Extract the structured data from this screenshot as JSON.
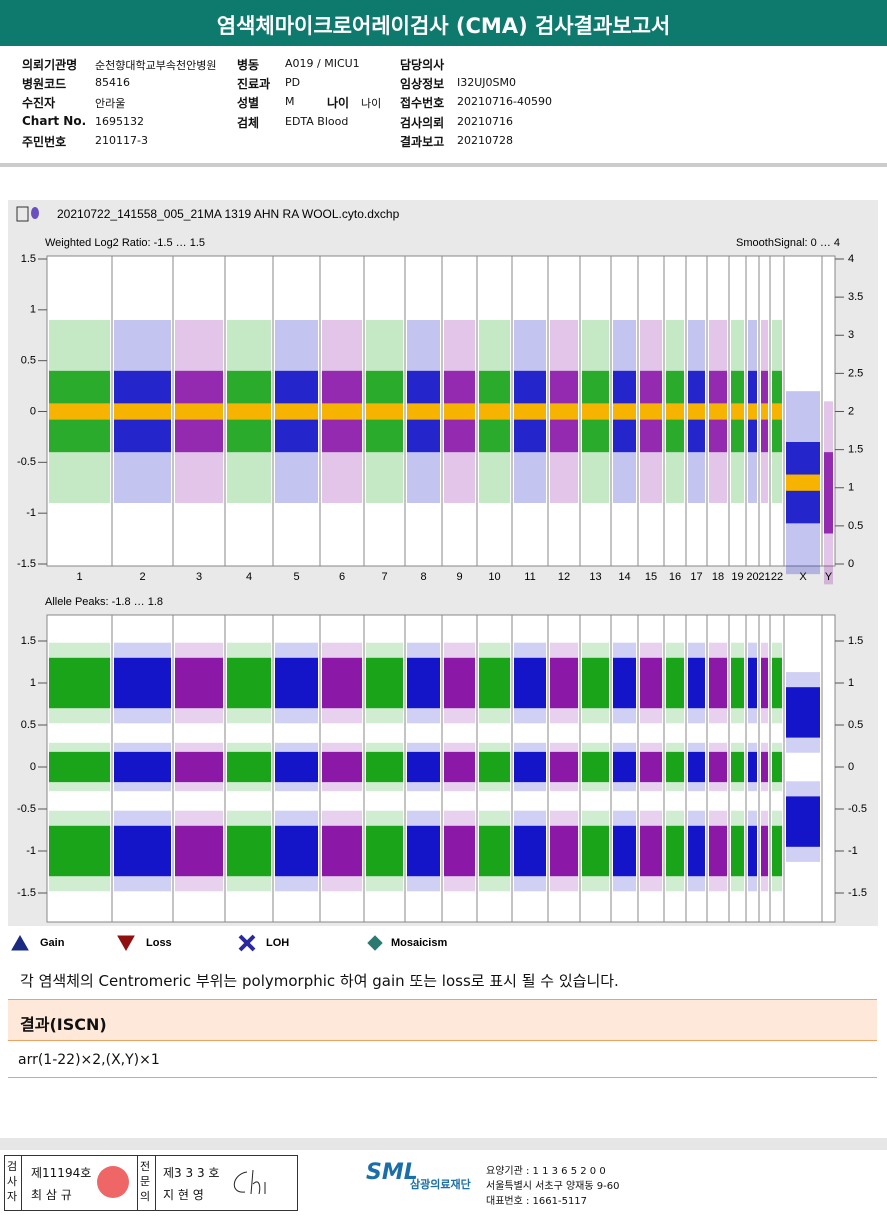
{
  "header": {
    "title": "염색체마이크로어레이검사 (CMA) 검사결과보고서"
  },
  "info": [
    [
      {
        "label": "의뢰기관명",
        "value": "순천향대학교부속천안병원"
      },
      {
        "label": "병동",
        "value": "A019 / MICU1"
      },
      {
        "label": "담당의사"
      }
    ],
    [
      {
        "label": "병원코드",
        "value": "85416"
      },
      {
        "label": "진료과",
        "value": "PD"
      },
      {
        "label": "임상정보",
        "value": "I32UJ0SM0"
      }
    ],
    [
      {
        "label": "수진자",
        "value": "안라울"
      },
      {
        "label": "성별",
        "value": "M"
      },
      {
        "label": "접수번호",
        "value": "20210716-40590"
      }
    ],
    [
      {
        "label": "Chart No.",
        "value": "1695132"
      },
      {
        "label": "검체",
        "value": "EDTA Blood"
      },
      {
        "label": "검사의뢰",
        "value": "20210716"
      }
    ],
    [
      {
        "label": "주민번호",
        "value": "210117-3"
      },
      {
        "label": "결과보고",
        "value": "20210728"
      }
    ]
  ],
  "age": {
    "label": "나이",
    "value": "나이"
  },
  "plot": {
    "file": "20210722_141558_005_21MA 1319 AHN RA WOOL.cyto.dxchp",
    "top": {
      "left_title": "Weighted Log2 Ratio: -1.5 … 1.5",
      "right_title": "SmoothSignal: 0 … 4",
      "left_ticks": [
        "1.5",
        "1",
        "0.5",
        "0",
        "-0.5",
        "-1",
        "-1.5"
      ],
      "right_ticks": [
        "4",
        "3.5",
        "3",
        "2.5",
        "2",
        "1.5",
        "1",
        "0.5",
        "0"
      ]
    },
    "chromosomes": [
      "1",
      "2",
      "3",
      "4",
      "5",
      "6",
      "7",
      "8",
      "9",
      "10",
      "11",
      "12",
      "13",
      "14",
      "15",
      "16",
      "17",
      "18",
      "19",
      "20",
      "21",
      "22",
      "X",
      "Y"
    ],
    "bottom": {
      "left_title": "Allele Peaks: -1.8 … 1.8",
      "left_ticks": [
        "1.5",
        "1",
        "0.5",
        "0",
        "-0.5",
        "-1",
        "-1.5"
      ],
      "right_ticks": [
        "1.5",
        "1",
        "0.5",
        "0",
        "-0.5",
        "-1",
        "-1.5"
      ]
    }
  },
  "legend": [
    "Gain",
    "Loss",
    "LOH",
    "Mosaicism"
  ],
  "note": "각 염색체의 Centromeric 부위는 polymorphic 하여 gain 또는 loss로 표시 될 수 있습니다.",
  "result": {
    "title": "결과(ISCN)",
    "text": "arr(1-22)×2,(X,Y)×1"
  },
  "footer": {
    "examiner": "검사자",
    "examiner_no": "제11194호",
    "examiner_name": "최 삼 규",
    "specialist": "전문의",
    "specialist_no": "제3 3 3 호",
    "specialist_name": "지 현 영",
    "logo": "SML",
    "org": "삼광의료재단",
    "address": [
      "요양기관 : 1 1 3 6 5 2 0 0",
      "서울특별시 서초구 양재동 9-60",
      "대표번호 : 1661-5117"
    ]
  }
}
